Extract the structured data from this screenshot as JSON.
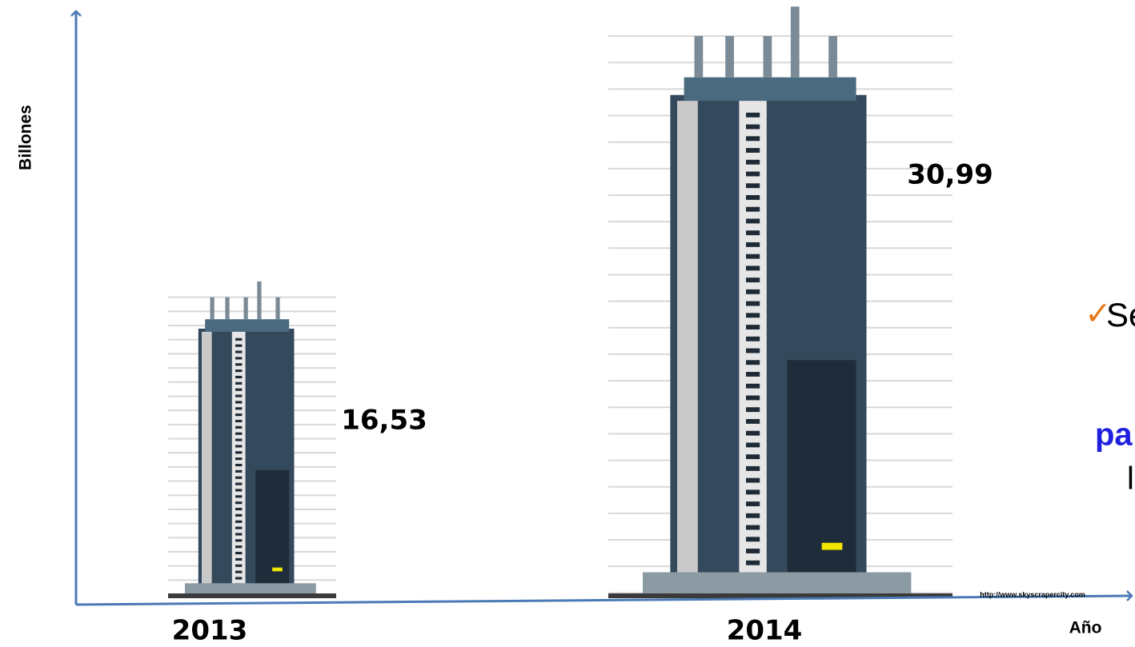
{
  "chart_data": {
    "type": "bar",
    "y_label": "Billones",
    "x_label": "Año",
    "categories": [
      "2013",
      "2014"
    ],
    "values": [
      16.53,
      30.99
    ],
    "value_labels": [
      "16,53",
      "30,99"
    ],
    "ylim": [
      0,
      31
    ],
    "source": "http://www.skyscrapercity.com",
    "side_text": [
      "Se",
      "pa",
      "l"
    ]
  }
}
